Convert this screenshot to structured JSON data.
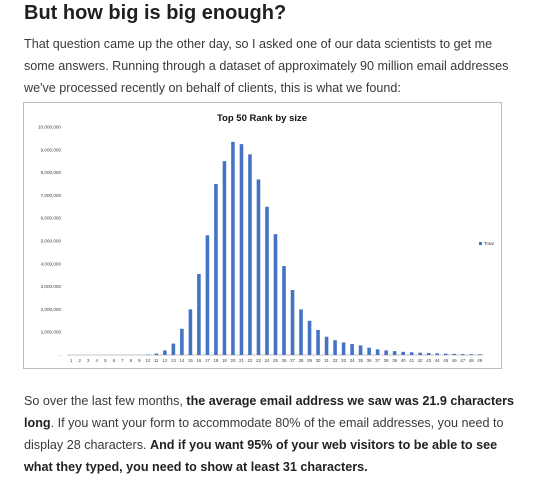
{
  "page": {
    "heading": "But how big is big enough?",
    "intro": "That question came up the other day, so I asked one of our data scientists to get me some answers.  Running through a dataset of approximately 90 million email addresses we've processed recently on behalf of clients, this is what we found:",
    "outro": {
      "t1": "So over the last few months, ",
      "b1": "the average email address we saw was 21.9 characters long",
      "t2": ".  If you want your form to accommodate 80% of the email addresses, you need to display 28 characters.  ",
      "b2": "And if you want 95% of your web visitors to be able to see what they typed, you need to show at least 31 characters."
    }
  },
  "chart_data": {
    "type": "bar",
    "title": "Top 50 Rank by size",
    "xlabel": "",
    "ylabel": "",
    "ylim": [
      0,
      10000000
    ],
    "yticks": [
      "-",
      "1,000,000",
      "2,000,000",
      "3,000,000",
      "4,000,000",
      "5,000,000",
      "6,000,000",
      "7,000,000",
      "8,000,000",
      "9,000,000",
      "10,000,000"
    ],
    "legend_position": "right",
    "colors": {
      "bar": "#4472c4",
      "axis": "#b0b0b0"
    },
    "categories": [
      "1",
      "2",
      "3",
      "4",
      "5",
      "6",
      "7",
      "8",
      "9",
      "10",
      "11",
      "12",
      "13",
      "14",
      "15",
      "16",
      "17",
      "18",
      "19",
      "20",
      "21",
      "22",
      "23",
      "24",
      "25",
      "26",
      "27",
      "28",
      "29",
      "30",
      "31",
      "32",
      "33",
      "34",
      "35",
      "36",
      "37",
      "38",
      "39",
      "40",
      "41",
      "42",
      "43",
      "44",
      "45",
      "46",
      "47",
      "48",
      "49"
    ],
    "series": [
      {
        "name": "Total",
        "values": [
          0,
          0,
          0,
          0,
          0,
          0,
          0,
          0,
          5000,
          20000,
          60000,
          200000,
          500000,
          1150000,
          2000000,
          3550000,
          5250000,
          7500000,
          8500000,
          9350000,
          9250000,
          8800000,
          7700000,
          6500000,
          5300000,
          3900000,
          2850000,
          2000000,
          1500000,
          1100000,
          800000,
          650000,
          550000,
          480000,
          420000,
          320000,
          250000,
          200000,
          170000,
          140000,
          120000,
          100000,
          85000,
          70000,
          60000,
          50000,
          40000,
          35000,
          30000
        ]
      }
    ]
  }
}
